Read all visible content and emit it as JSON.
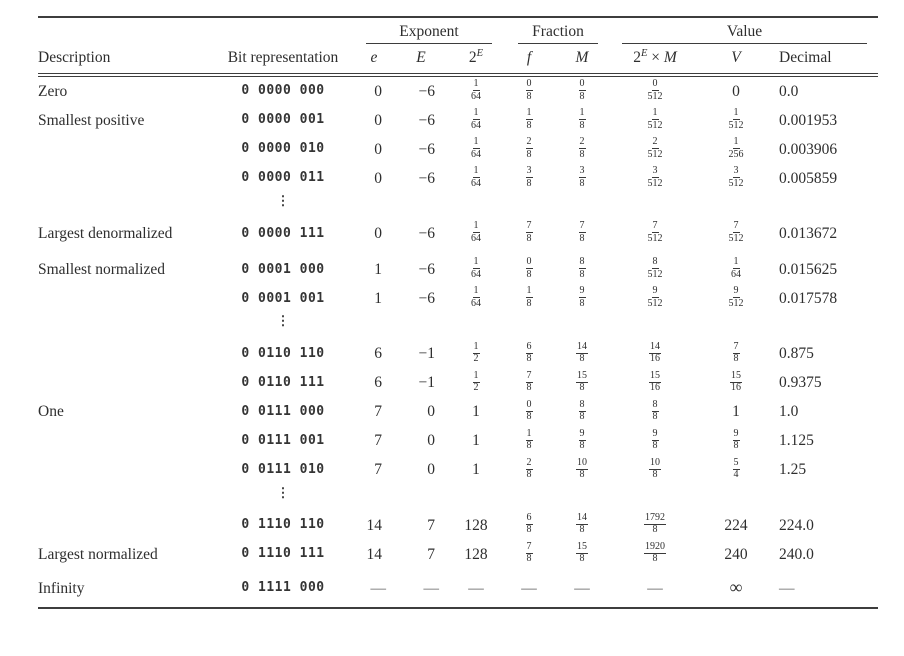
{
  "table": {
    "header": {
      "description": "Description",
      "bit_representation": "Bit representation",
      "group_exponent": "Exponent",
      "group_fraction": "Fraction",
      "group_value": "Value",
      "col_e": "e",
      "col_E": "E",
      "two": "2",
      "sup_E": "E",
      "col_f": "f",
      "col_M": "M",
      "times": " × ",
      "col_V": "V",
      "col_decimal": "Decimal"
    },
    "ellipsis_glyph": "⋮",
    "rows": [
      {
        "description": "Zero",
        "bits": "0 0000 000",
        "e": "0",
        "E": "−6",
        "twoE": {
          "n": "1",
          "d": "64"
        },
        "f": {
          "n": "0",
          "d": "8"
        },
        "M": {
          "n": "0",
          "d": "8"
        },
        "prod": {
          "n": "0",
          "d": "512"
        },
        "V": "0",
        "dec": "0.0"
      },
      {
        "description": "Smallest positive",
        "bits": "0 0000 001",
        "e": "0",
        "E": "−6",
        "twoE": {
          "n": "1",
          "d": "64"
        },
        "f": {
          "n": "1",
          "d": "8"
        },
        "M": {
          "n": "1",
          "d": "8"
        },
        "prod": {
          "n": "1",
          "d": "512"
        },
        "V": {
          "n": "1",
          "d": "512"
        },
        "dec": "0.001953"
      },
      {
        "description": "",
        "bits": "0 0000 010",
        "e": "0",
        "E": "−6",
        "twoE": {
          "n": "1",
          "d": "64"
        },
        "f": {
          "n": "2",
          "d": "8"
        },
        "M": {
          "n": "2",
          "d": "8"
        },
        "prod": {
          "n": "2",
          "d": "512"
        },
        "V": {
          "n": "1",
          "d": "256"
        },
        "dec": "0.003906"
      },
      {
        "description": "",
        "bits": "0 0000 011",
        "e": "0",
        "E": "−6",
        "twoE": {
          "n": "1",
          "d": "64"
        },
        "f": {
          "n": "3",
          "d": "8"
        },
        "M": {
          "n": "3",
          "d": "8"
        },
        "prod": {
          "n": "3",
          "d": "512"
        },
        "V": {
          "n": "3",
          "d": "512"
        },
        "dec": "0.005859"
      },
      {
        "type": "ellipsis"
      },
      {
        "description": "Largest denormalized",
        "bits": "0 0000 111",
        "e": "0",
        "E": "−6",
        "twoE": {
          "n": "1",
          "d": "64"
        },
        "f": {
          "n": "7",
          "d": "8"
        },
        "M": {
          "n": "7",
          "d": "8"
        },
        "prod": {
          "n": "7",
          "d": "512"
        },
        "V": {
          "n": "7",
          "d": "512"
        },
        "dec": "0.013672",
        "gap": true
      },
      {
        "description": "Smallest normalized",
        "bits": "0 0001 000",
        "e": "1",
        "E": "−6",
        "twoE": {
          "n": "1",
          "d": "64"
        },
        "f": {
          "n": "0",
          "d": "8"
        },
        "M": {
          "n": "8",
          "d": "8"
        },
        "prod": {
          "n": "8",
          "d": "512"
        },
        "V": {
          "n": "1",
          "d": "64"
        },
        "dec": "0.015625",
        "gap": true
      },
      {
        "description": "",
        "bits": "0 0001 001",
        "e": "1",
        "E": "−6",
        "twoE": {
          "n": "1",
          "d": "64"
        },
        "f": {
          "n": "1",
          "d": "8"
        },
        "M": {
          "n": "9",
          "d": "8"
        },
        "prod": {
          "n": "9",
          "d": "512"
        },
        "V": {
          "n": "9",
          "d": "512"
        },
        "dec": "0.017578"
      },
      {
        "type": "ellipsis"
      },
      {
        "description": "",
        "bits": "0 0110 110",
        "e": "6",
        "E": "−1",
        "twoE": {
          "n": "1",
          "d": "2"
        },
        "f": {
          "n": "6",
          "d": "8"
        },
        "M": {
          "n": "14",
          "d": "8"
        },
        "prod": {
          "n": "14",
          "d": "16"
        },
        "V": {
          "n": "7",
          "d": "8"
        },
        "dec": "0.875",
        "gap": true
      },
      {
        "description": "",
        "bits": "0 0110 111",
        "e": "6",
        "E": "−1",
        "twoE": {
          "n": "1",
          "d": "2"
        },
        "f": {
          "n": "7",
          "d": "8"
        },
        "M": {
          "n": "15",
          "d": "8"
        },
        "prod": {
          "n": "15",
          "d": "16"
        },
        "V": {
          "n": "15",
          "d": "16"
        },
        "dec": "0.9375"
      },
      {
        "description": "One",
        "bits": "0 0111 000",
        "e": "7",
        "E": "0",
        "twoE": "1",
        "f": {
          "n": "0",
          "d": "8"
        },
        "M": {
          "n": "8",
          "d": "8"
        },
        "prod": {
          "n": "8",
          "d": "8"
        },
        "V": "1",
        "dec": "1.0"
      },
      {
        "description": "",
        "bits": "0 0111 001",
        "e": "7",
        "E": "0",
        "twoE": "1",
        "f": {
          "n": "1",
          "d": "8"
        },
        "M": {
          "n": "9",
          "d": "8"
        },
        "prod": {
          "n": "9",
          "d": "8"
        },
        "V": {
          "n": "9",
          "d": "8"
        },
        "dec": "1.125"
      },
      {
        "description": "",
        "bits": "0 0111 010",
        "e": "7",
        "E": "0",
        "twoE": "1",
        "f": {
          "n": "2",
          "d": "8"
        },
        "M": {
          "n": "10",
          "d": "8"
        },
        "prod": {
          "n": "10",
          "d": "8"
        },
        "V": {
          "n": "5",
          "d": "4"
        },
        "dec": "1.25"
      },
      {
        "type": "ellipsis"
      },
      {
        "description": "",
        "bits": "0 1110 110",
        "e": "14",
        "E": "7",
        "twoE": "128",
        "f": {
          "n": "6",
          "d": "8"
        },
        "M": {
          "n": "14",
          "d": "8"
        },
        "prod": {
          "n": "1792",
          "d": "8"
        },
        "V": "224",
        "dec": "224.0",
        "gap": true
      },
      {
        "description": "Largest normalized",
        "bits": "0 1110 111",
        "e": "14",
        "E": "7",
        "twoE": "128",
        "f": {
          "n": "7",
          "d": "8"
        },
        "M": {
          "n": "15",
          "d": "8"
        },
        "prod": {
          "n": "1920",
          "d": "8"
        },
        "V": "240",
        "dec": "240.0"
      },
      {
        "description": "Infinity",
        "bits": "0 1111 000",
        "e": "—",
        "E": "—",
        "twoE": "—",
        "f": "—",
        "M": "—",
        "prod": "—",
        "V": "∞",
        "dec": "—",
        "gap": true
      }
    ]
  }
}
